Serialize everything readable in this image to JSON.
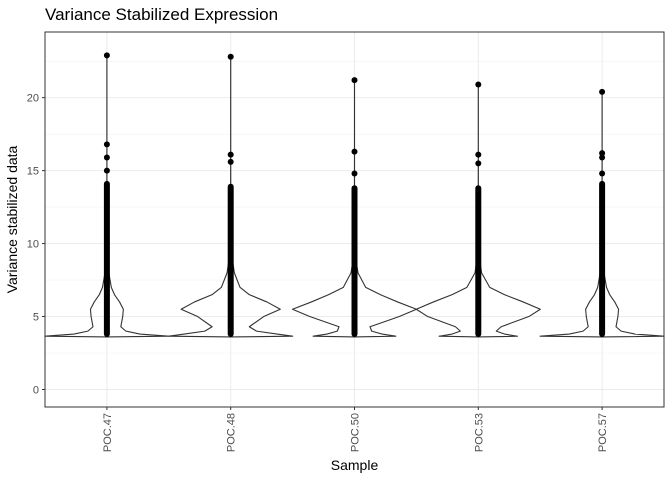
{
  "chart_data": {
    "type": "violin",
    "title": "Variance Stabilized Expression",
    "xlabel": "Sample",
    "ylabel": "Variance stabilized data",
    "categories": [
      "POC.47",
      "POC.48",
      "POC.50",
      "POC.53",
      "POC.57"
    ],
    "ylim": [
      -1.2,
      24.5
    ],
    "yticks": [
      0,
      5,
      10,
      15,
      20
    ],
    "ytick_labels": [
      "0",
      "5",
      "10",
      "15",
      "20"
    ],
    "grid": true,
    "series": [
      {
        "name": "POC.47",
        "min": 3.6,
        "max": 22.9,
        "outliers": [
          22.9,
          16.8,
          15.9,
          15.0
        ],
        "dense_range": [
          3.6,
          14.3
        ],
        "profile": [
          [
            3.6,
            0.0
          ],
          [
            3.65,
            0.98
          ],
          [
            3.8,
            0.52
          ],
          [
            4.0,
            0.3
          ],
          [
            4.3,
            0.22
          ],
          [
            5.0,
            0.25
          ],
          [
            5.5,
            0.26
          ],
          [
            6.0,
            0.2
          ],
          [
            6.5,
            0.12
          ],
          [
            7.0,
            0.07
          ],
          [
            8.0,
            0.03
          ],
          [
            9.0,
            0.015
          ],
          [
            10.0,
            0.008
          ],
          [
            11.0,
            0.004
          ],
          [
            12.0,
            0.002
          ],
          [
            13.0,
            0.001
          ],
          [
            14.0,
            0.0007
          ],
          [
            16.0,
            0.0004
          ],
          [
            22.9,
            0.0004
          ]
        ]
      },
      {
        "name": "POC.48",
        "min": 3.6,
        "max": 22.8,
        "outliers": [
          22.8,
          16.1,
          15.6
        ],
        "dense_range": [
          3.6,
          14.1
        ],
        "profile": [
          [
            3.6,
            0.0
          ],
          [
            3.65,
            0.6
          ],
          [
            3.8,
            0.45
          ],
          [
            4.0,
            0.25
          ],
          [
            4.3,
            0.18
          ],
          [
            5.0,
            0.32
          ],
          [
            5.5,
            0.48
          ],
          [
            6.0,
            0.35
          ],
          [
            6.5,
            0.18
          ],
          [
            7.0,
            0.09
          ],
          [
            8.0,
            0.035
          ],
          [
            9.0,
            0.015
          ],
          [
            10.0,
            0.008
          ],
          [
            11.0,
            0.004
          ],
          [
            12.0,
            0.002
          ],
          [
            13.0,
            0.001
          ],
          [
            14.0,
            0.0007
          ],
          [
            16.0,
            0.0004
          ],
          [
            22.8,
            0.0004
          ]
        ]
      },
      {
        "name": "POC.50",
        "min": 3.6,
        "max": 21.2,
        "outliers": [
          21.2,
          16.3,
          14.8
        ],
        "dense_range": [
          3.6,
          14.0
        ],
        "profile": [
          [
            3.6,
            0.0
          ],
          [
            3.65,
            0.48
          ],
          [
            3.8,
            0.32
          ],
          [
            4.0,
            0.2
          ],
          [
            4.3,
            0.18
          ],
          [
            5.0,
            0.52
          ],
          [
            5.5,
            0.72
          ],
          [
            6.0,
            0.5
          ],
          [
            6.5,
            0.3
          ],
          [
            7.0,
            0.13
          ],
          [
            8.0,
            0.04
          ],
          [
            9.0,
            0.015
          ],
          [
            10.0,
            0.008
          ],
          [
            11.0,
            0.004
          ],
          [
            12.0,
            0.002
          ],
          [
            13.0,
            0.001
          ],
          [
            14.0,
            0.0007
          ],
          [
            16.0,
            0.0004
          ],
          [
            21.2,
            0.0004
          ]
        ]
      },
      {
        "name": "POC.53",
        "min": 3.6,
        "max": 20.9,
        "outliers": [
          20.9,
          16.1,
          15.5
        ],
        "dense_range": [
          3.6,
          14.0
        ],
        "profile": [
          [
            3.6,
            0.0
          ],
          [
            3.65,
            0.48
          ],
          [
            3.8,
            0.32
          ],
          [
            4.0,
            0.22
          ],
          [
            4.3,
            0.28
          ],
          [
            5.0,
            0.62
          ],
          [
            5.5,
            0.76
          ],
          [
            6.0,
            0.55
          ],
          [
            6.5,
            0.32
          ],
          [
            7.0,
            0.14
          ],
          [
            8.0,
            0.04
          ],
          [
            9.0,
            0.015
          ],
          [
            10.0,
            0.008
          ],
          [
            11.0,
            0.004
          ],
          [
            12.0,
            0.002
          ],
          [
            13.0,
            0.001
          ],
          [
            14.0,
            0.0007
          ],
          [
            16.0,
            0.0004
          ],
          [
            20.9,
            0.0004
          ]
        ]
      },
      {
        "name": "POC.57",
        "min": 3.6,
        "max": 20.4,
        "outliers": [
          20.4,
          16.2,
          15.9,
          14.8
        ],
        "dense_range": [
          3.6,
          14.3
        ],
        "profile": [
          [
            3.6,
            0.0
          ],
          [
            3.65,
            0.98
          ],
          [
            3.8,
            0.52
          ],
          [
            4.0,
            0.3
          ],
          [
            4.3,
            0.22
          ],
          [
            5.0,
            0.25
          ],
          [
            5.5,
            0.26
          ],
          [
            6.0,
            0.2
          ],
          [
            6.5,
            0.12
          ],
          [
            7.0,
            0.07
          ],
          [
            8.0,
            0.03
          ],
          [
            9.0,
            0.015
          ],
          [
            10.0,
            0.008
          ],
          [
            11.0,
            0.004
          ],
          [
            12.0,
            0.002
          ],
          [
            13.0,
            0.001
          ],
          [
            14.0,
            0.0007
          ],
          [
            16.0,
            0.0004
          ],
          [
            20.4,
            0.0004
          ]
        ]
      }
    ]
  }
}
